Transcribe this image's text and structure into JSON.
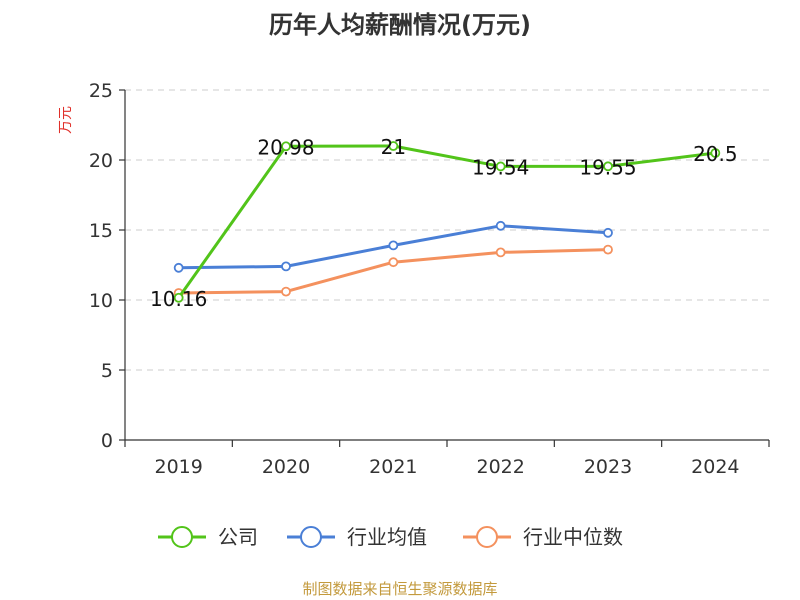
{
  "chart_data": {
    "type": "line",
    "title": "历年人均薪酬情况(万元)",
    "ylabel": "万元",
    "categories": [
      "2019",
      "2020",
      "2021",
      "2022",
      "2023",
      "2024"
    ],
    "ylim": [
      0,
      25
    ],
    "yticks": [
      0,
      5,
      10,
      15,
      20,
      25
    ],
    "grid": true,
    "legend_position": "bottom",
    "series": [
      {
        "name": "公司",
        "color": "#52c41a",
        "values": [
          10.16,
          20.98,
          21,
          19.54,
          19.55,
          20.5
        ],
        "labels": [
          "10.16",
          "20.98",
          "21",
          "19.54",
          "19.55",
          "20.5"
        ]
      },
      {
        "name": "行业均值",
        "color": "#4a7fd6",
        "values": [
          12.3,
          12.4,
          13.9,
          15.3,
          14.8,
          null
        ]
      },
      {
        "name": "行业中位数",
        "color": "#f4915e",
        "values": [
          10.5,
          10.6,
          12.7,
          13.4,
          13.6,
          null
        ]
      }
    ]
  },
  "source": "制图数据来自恒生聚源数据库"
}
